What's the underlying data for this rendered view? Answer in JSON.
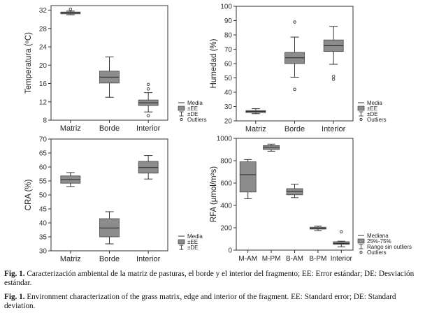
{
  "chart_data": [
    {
      "type": "boxplot",
      "ylabel": "Temperatura (ºC)",
      "ylim": [
        8,
        33
      ],
      "yticks": [
        8,
        12,
        16,
        20,
        24,
        28,
        32
      ],
      "categories": [
        "Matriz",
        "Borde",
        "Interior"
      ],
      "box_color": "#8c8c8c",
      "boxes": [
        {
          "center": 31.4,
          "box": [
            31.2,
            31.6
          ],
          "whisker": [
            31.0,
            31.8
          ],
          "outliers": [
            32.2
          ]
        },
        {
          "center": 17.4,
          "box": [
            16.1,
            18.7
          ],
          "whisker": [
            13.0,
            21.8
          ],
          "outliers": []
        },
        {
          "center": 11.8,
          "box": [
            11.2,
            12.4
          ],
          "whisker": [
            9.8,
            14.0
          ],
          "outliers": [
            14.8,
            15.8,
            9.0
          ]
        }
      ],
      "legend": [
        "Media",
        "±EE",
        "±DE",
        "Outliers"
      ]
    },
    {
      "type": "boxplot",
      "ylabel": "Humedad (%)",
      "ylim": [
        20,
        100
      ],
      "yticks": [
        20,
        30,
        40,
        50,
        60,
        70,
        80,
        90,
        100
      ],
      "categories": [
        "Matriz",
        "Borde",
        "Interior"
      ],
      "box_color": "#8c8c8c",
      "boxes": [
        {
          "center": 26.5,
          "box": [
            25.8,
            27.2
          ],
          "whisker": [
            25.0,
            28.5
          ],
          "outliers": []
        },
        {
          "center": 64.0,
          "box": [
            60.0,
            67.8
          ],
          "whisker": [
            50.5,
            78.5
          ],
          "outliers": [
            89.0,
            42.0
          ]
        },
        {
          "center": 72.5,
          "box": [
            68.5,
            76.5
          ],
          "whisker": [
            59.5,
            86.0
          ],
          "outliers": [
            51.0,
            49.0
          ]
        }
      ],
      "legend": [
        "Media",
        "±EE",
        "±DE",
        "Outliers"
      ]
    },
    {
      "type": "boxplot",
      "ylabel": "CRA (%)",
      "ylim": [
        30,
        70
      ],
      "yticks": [
        30,
        35,
        40,
        45,
        50,
        55,
        60,
        65,
        70
      ],
      "categories": [
        "Matriz",
        "Borde",
        "Interior"
      ],
      "box_color": "#8c8c8c",
      "boxes": [
        {
          "center": 55.5,
          "box": [
            54.2,
            56.8
          ],
          "whisker": [
            53.0,
            58.0
          ],
          "outliers": []
        },
        {
          "center": 38.2,
          "box": [
            35.0,
            41.5
          ],
          "whisker": [
            32.5,
            44.0
          ],
          "outliers": []
        },
        {
          "center": 59.8,
          "box": [
            57.8,
            62.0
          ],
          "whisker": [
            55.7,
            64.1
          ],
          "outliers": []
        }
      ],
      "legend": [
        "Media",
        "±EE",
        "±DE"
      ]
    },
    {
      "type": "boxplot",
      "ylabel": "RFA (µmol/m²s)",
      "ylim": [
        0,
        1000
      ],
      "yticks": [
        0,
        200,
        400,
        600,
        800,
        1000
      ],
      "categories": [
        "M-AM",
        "M-PM",
        "B-AM",
        "B-PM",
        "Interior"
      ],
      "box_color": "#8c8c8c",
      "boxes": [
        {
          "center": 675,
          "box": [
            520,
            790
          ],
          "whisker": [
            460,
            810
          ],
          "outliers": []
        },
        {
          "center": 920,
          "box": [
            900,
            935
          ],
          "whisker": [
            885,
            948
          ],
          "outliers": []
        },
        {
          "center": 525,
          "box": [
            495,
            550
          ],
          "whisker": [
            470,
            590
          ],
          "outliers": []
        },
        {
          "center": 195,
          "box": [
            188,
            205
          ],
          "whisker": [
            175,
            215
          ],
          "outliers": []
        },
        {
          "center": 60,
          "box": [
            52,
            75
          ],
          "whisker": [
            30,
            80
          ],
          "outliers": [
            165
          ]
        }
      ],
      "legend": [
        "Mediana",
        "25%-75%",
        "Rango sin outliers",
        "Outliers"
      ]
    }
  ],
  "caption": {
    "es_label": "Fig. 1.",
    "es_text": " Caracterización ambiental de la matriz de pasturas, el borde y el interior del fragmento; EE: Error estándar; DE: Desviación estándar.",
    "en_label": "Fig. 1.",
    "en_text": " Environment characterization of the grass matrix, edge and interior of the fragment. EE: Standard error; DE: Standard deviation."
  }
}
